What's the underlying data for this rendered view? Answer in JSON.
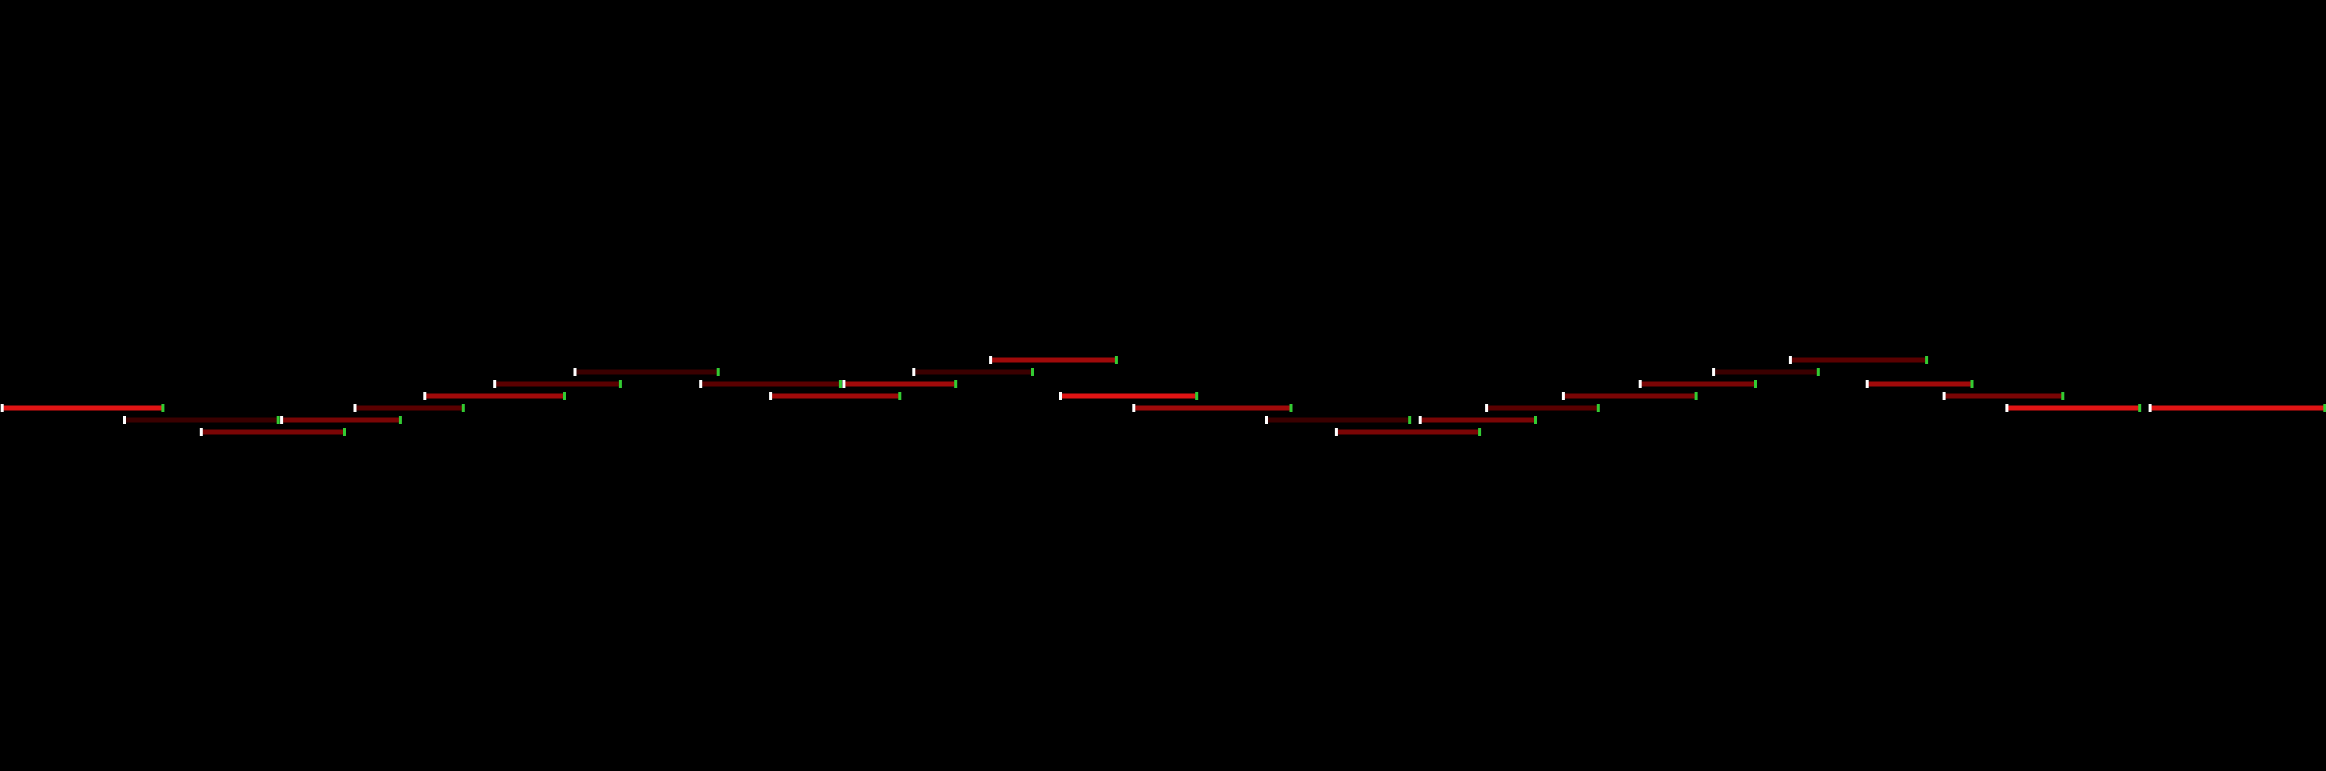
{
  "colors": {
    "background": "#000000",
    "start_marker": "#ffffff",
    "end_marker": "#33cc33",
    "bar_levels": [
      "#3a0000",
      "#5a0000",
      "#7a0505",
      "#a00a0a",
      "#e01414"
    ]
  },
  "timeline": {
    "segments": [
      {
        "start": 0.5,
        "end": 46.5,
        "lane": 5,
        "level": 4
      },
      {
        "start": 35.5,
        "end": 79.5,
        "lane": 6,
        "level": 0
      },
      {
        "start": 80.5,
        "end": 114.5,
        "lane": 6,
        "level": 2
      },
      {
        "start": 57.5,
        "end": 98.5,
        "lane": 7,
        "level": 2
      },
      {
        "start": 101.5,
        "end": 132.5,
        "lane": 5,
        "level": 1
      },
      {
        "start": 121.5,
        "end": 161.5,
        "lane": 4,
        "level": 3
      },
      {
        "start": 141.5,
        "end": 177.5,
        "lane": 3,
        "level": 1
      },
      {
        "start": 164.5,
        "end": 205.5,
        "lane": 2,
        "level": 0
      },
      {
        "start": 200.5,
        "end": 240.5,
        "lane": 3,
        "level": 1
      },
      {
        "start": 220.5,
        "end": 257.5,
        "lane": 4,
        "level": 3
      },
      {
        "start": 241.5,
        "end": 273.5,
        "lane": 3,
        "level": 3
      },
      {
        "start": 261.5,
        "end": 295.5,
        "lane": 2,
        "level": 0
      },
      {
        "start": 283.5,
        "end": 319.5,
        "lane": 1,
        "level": 3
      },
      {
        "start": 303.5,
        "end": 342.5,
        "lane": 4,
        "level": 4
      },
      {
        "start": 324.5,
        "end": 369.5,
        "lane": 5,
        "level": 3
      },
      {
        "start": 362.5,
        "end": 403.5,
        "lane": 6,
        "level": 0
      },
      {
        "start": 382.5,
        "end": 423.5,
        "lane": 7,
        "level": 2
      },
      {
        "start": 406.5,
        "end": 439.5,
        "lane": 6,
        "level": 2
      },
      {
        "start": 425.5,
        "end": 457.5,
        "lane": 5,
        "level": 1
      },
      {
        "start": 447.5,
        "end": 485.5,
        "lane": 4,
        "level": 2
      },
      {
        "start": 469.5,
        "end": 502.5,
        "lane": 3,
        "level": 2
      },
      {
        "start": 490.5,
        "end": 520.5,
        "lane": 2,
        "level": 0
      },
      {
        "start": 512.5,
        "end": 551.5,
        "lane": 1,
        "level": 1
      },
      {
        "start": 534.5,
        "end": 564.5,
        "lane": 3,
        "level": 3
      },
      {
        "start": 556.5,
        "end": 590.5,
        "lane": 4,
        "level": 2
      },
      {
        "start": 574.5,
        "end": 612.5,
        "lane": 5,
        "level": 4
      },
      {
        "start": 615.5,
        "end": 665.5,
        "lane": 5,
        "level": 4
      }
    ]
  }
}
